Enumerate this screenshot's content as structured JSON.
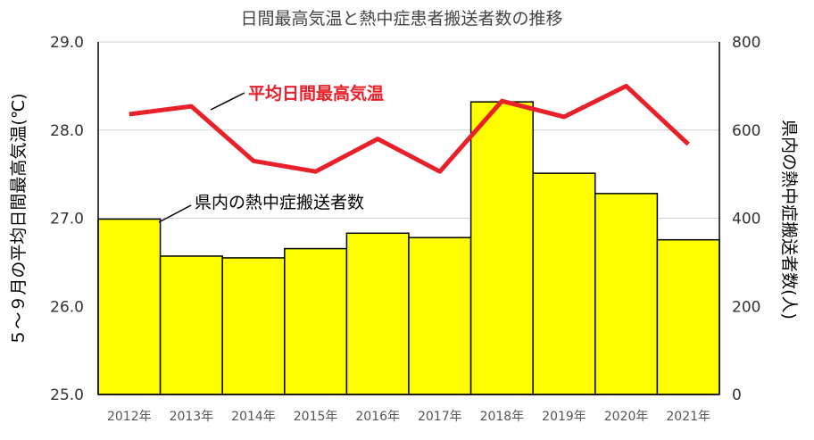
{
  "chart_data": {
    "type": "bar",
    "title": "日間最高気温と熱中症患者搬送者数の推移",
    "categories": [
      "2012年",
      "2013年",
      "2014年",
      "2015年",
      "2016年",
      "2017年",
      "2018年",
      "2019年",
      "2020年",
      "2021年"
    ],
    "series": [
      {
        "name": "県内の熱中症搬送者数",
        "type": "bar",
        "axis": "right",
        "color": "#ffff00",
        "values": [
          398,
          314,
          310,
          331,
          366,
          356,
          664,
          502,
          456,
          351
        ]
      },
      {
        "name": "平均日間最高気温",
        "type": "line",
        "axis": "left",
        "color": "#e8202a",
        "values": [
          28.18,
          28.27,
          27.65,
          27.53,
          27.9,
          27.53,
          28.33,
          28.15,
          28.5,
          27.84
        ]
      }
    ],
    "yleft": {
      "label": "５～９月の平均日間最高気温(℃)",
      "ylim": [
        25.0,
        29.0
      ],
      "ticks": [
        "25.0",
        "26.0",
        "27.0",
        "28.0",
        "29.0"
      ]
    },
    "yright": {
      "label": "県内の熱中症搬送者数(人)",
      "ylim": [
        0,
        800
      ],
      "ticks": [
        "0",
        "200",
        "400",
        "600",
        "800"
      ]
    },
    "annotations": {
      "bar_label": "県内の熱中症搬送者数",
      "line_label": "平均日間最高気温"
    },
    "grid": true,
    "legend": "none"
  }
}
